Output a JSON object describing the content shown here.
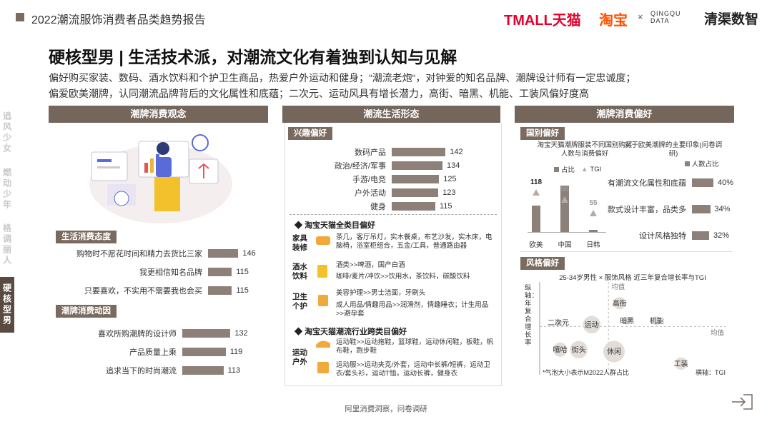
{
  "header": {
    "title": "2022潮流服饰消费者品类趋势报告",
    "logos": [
      "TMALL天猫",
      "淘宝",
      "×",
      "QINGQU DATA",
      "清渠数智"
    ]
  },
  "nav": [
    "追风少女",
    "燃动少年",
    "格调丽人",
    "硬核型男"
  ],
  "title": "硬核型男 | 生活技术派，对潮流文化有着独到认知与见解",
  "subtitle": [
    "偏好购买家装、数码、酒水饮料和个护卫生商品，热爱户外运动和健身；“潮流老炮“，对钟爱的知名品牌、潮牌设计师有一定忠诚度；",
    "偏爱欧美潮牌，认同潮流品牌背后的文化属性和底蕴；二次元、运动风具有增长潜力，高街、暗黑、机能、工装风偏好度高"
  ],
  "panels": [
    {
      "title": "潮牌消费观念",
      "attitude": {
        "title": "生活消费态度",
        "categories": [
          "购物时不愿花时间和精力去货比三家",
          "我更相信知名品牌",
          "只要喜欢，不实用不需要我也会买"
        ],
        "values": [
          146,
          115,
          115
        ]
      },
      "motivation": {
        "title": "潮牌消费动因",
        "categories": [
          "喜欢所购潮牌的设计师",
          "产品质量上乘",
          "追求当下的时尚潮流"
        ],
        "values": [
          132,
          119,
          113
        ]
      }
    },
    {
      "title": "潮流生活形态",
      "interest": {
        "title": "兴趣偏好",
        "categories": [
          "数码产品",
          "政治/经济/军事",
          "手游/电竞",
          "户外活动",
          "健身"
        ],
        "values": [
          142,
          134,
          125,
          123,
          115
        ]
      },
      "category_pref": {
        "title": "淘宝天猫全类目偏好",
        "groups": [
          {
            "label": "家具装修",
            "lines": [
              "茶几，客厅吊灯，实木餐桌，布艺沙发，实木床，电脑椅，浴室柜组合，五金/工具，普通路由器"
            ]
          },
          {
            "label": "酒水饮料",
            "lines": [
              "酒类>>啤酒，国产白酒",
              "咖啡/麦片/冲饮>>饮用水，茶饮料，碳酸饮料"
            ]
          },
          {
            "label": "卫生个护",
            "lines": [
              "美容护理>>男士洁面，牙刷头",
              "成人用品/情趣用品>>润滑剂，情趣睡衣；计生用品>>避孕套"
            ]
          }
        ]
      },
      "cross_pref": {
        "title": "淘宝天猫潮流行业跨类目偏好",
        "groups": [
          {
            "label": "运动户外",
            "lines": [
              "运动鞋>>运动拖鞋，篮球鞋，运动休闲鞋，板鞋，帆布鞋，跑步鞋",
              "运动服>>运动夹克/外套，运动中长裤/短裤，运动卫衣/套头衫，运动T恤，运动长裤，健身衣"
            ]
          }
        ]
      }
    },
    {
      "title": "潮牌消费偏好",
      "country": {
        "title": "国别偏好",
        "chart_title": "淘宝天猫潮牌服装不同国别购买人数与消费偏好",
        "legend": [
          "占比",
          "TGI"
        ],
        "categories": [
          "欧美",
          "中国",
          "日韩"
        ],
        "share": [
          35,
          62,
          3
        ],
        "tgi": [
          118,
          96,
          55
        ]
      },
      "impression": {
        "title": "对于欧美潮牌的主要印象(问卷调研)",
        "legend": "人数占比",
        "categories": [
          "有潮流文化属性和底蕴",
          "款式设计丰富，品类多",
          "设计风格独特"
        ],
        "values": [
          40,
          34,
          32
        ],
        "value_labels": [
          "40%",
          "34%",
          "32%"
        ]
      },
      "style": {
        "title": "风格偏好",
        "chart_title": "25-34岁男性 × 服饰风格 近三年复合增长率与TGI",
        "y_label": "纵轴：年复合增长率",
        "x_label": "横轴：TGI",
        "mean_labels": [
          "均值",
          "均值"
        ],
        "note": "*气泡大小表示M2022人群占比",
        "xlim": [
          0,
          100
        ],
        "ylim": [
          0,
          100
        ],
        "x_mean": 37,
        "y_mean": 52,
        "points": [
          {
            "label": "高街",
            "x": 43,
            "y": 77,
            "size": 3
          },
          {
            "label": "暗黑",
            "x": 47,
            "y": 58,
            "size": 1
          },
          {
            "label": "机能",
            "x": 63,
            "y": 58,
            "size": 1.5
          },
          {
            "label": "二次元",
            "x": 10,
            "y": 56,
            "size": 1
          },
          {
            "label": "运动",
            "x": 28,
            "y": 54,
            "size": 6
          },
          {
            "label": "嘻哈",
            "x": 11,
            "y": 27,
            "size": 4
          },
          {
            "label": "街头",
            "x": 21,
            "y": 27,
            "size": 6
          },
          {
            "label": "休闲",
            "x": 40,
            "y": 25,
            "size": 9
          },
          {
            "label": "工装",
            "x": 76,
            "y": 12,
            "size": 3
          }
        ]
      }
    }
  ],
  "source": "阿里消费洞察，问卷调研"
}
